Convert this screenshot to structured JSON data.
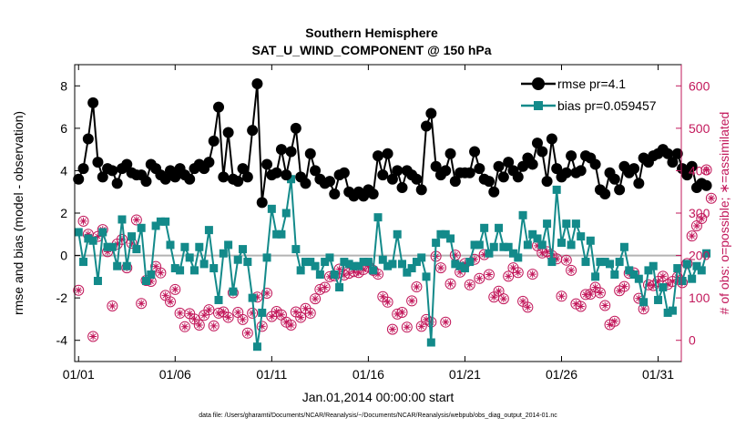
{
  "chart_data": {
    "type": "line",
    "title": "Southern Hemisphere",
    "subtitle": "SAT_U_WIND_COMPONENT @ 150 hPa",
    "xlabel": "Jan.01,2014 00:00:00 start",
    "ylabel_left": "rmse and bias (model - observation)",
    "ylabel_right": "# of obs: o=possible; ∗=assimilated",
    "footer": "data file: /Users/gharamti/Documents/NCAR/Reanalysis/~/Documents/NCAR/Reanalysis/webpub/obs_diag_output_2014-01.nc",
    "xlim": [
      0.8,
      32.2
    ],
    "ylim_left": [
      -5,
      9
    ],
    "ylim_right": [
      -50,
      650
    ],
    "x_ticks": [
      1,
      6,
      11,
      16,
      21,
      26,
      31
    ],
    "x_tick_labels": [
      "01/01",
      "01/06",
      "01/11",
      "01/16",
      "01/21",
      "01/26",
      "01/31"
    ],
    "y_left_ticks": [
      -4,
      -2,
      0,
      2,
      4,
      6,
      8
    ],
    "y_right_ticks": [
      0,
      100,
      200,
      300,
      400,
      500,
      600
    ],
    "legend_position": "top-right",
    "grid": false,
    "colors": {
      "rmse": "#000000",
      "bias": "#138a8a",
      "obs": "#c2185b",
      "zero": "#b3b3b3"
    },
    "series": [
      {
        "name": "rmse pr=4.1",
        "axis": "left",
        "x_start": 1.0,
        "x_step": 0.25,
        "values": [
          3.6,
          4.1,
          5.5,
          7.2,
          4.4,
          3.7,
          4.1,
          4.0,
          3.4,
          4.1,
          4.3,
          3.9,
          3.8,
          3.8,
          3.5,
          4.3,
          4.1,
          3.8,
          3.6,
          4.0,
          3.7,
          4.1,
          3.8,
          3.6,
          4.1,
          4.3,
          4.1,
          4.4,
          5.4,
          7.0,
          3.7,
          5.8,
          3.6,
          3.5,
          4.1,
          3.7,
          5.9,
          8.1,
          2.5,
          4.3,
          3.8,
          3.9,
          5.0,
          3.8,
          4.9,
          6.0,
          3.7,
          3.4,
          4.8,
          4.0,
          3.6,
          3.4,
          3.5,
          2.9,
          3.8,
          3.9,
          3.0,
          2.8,
          3.0,
          2.8,
          3.1,
          2.9,
          4.7,
          3.8,
          4.8,
          3.6,
          4.0,
          3.2,
          4.0,
          3.8,
          3.6,
          3.1,
          6.1,
          6.7,
          4.2,
          3.8,
          4.0,
          4.8,
          3.5,
          3.9,
          3.9,
          3.9,
          4.9,
          4.1,
          3.6,
          3.5,
          3.0,
          4.2,
          3.7,
          4.4,
          4.0,
          3.7,
          4.2,
          4.6,
          4.3,
          5.3,
          4.9,
          3.5,
          5.5,
          4.1,
          3.7,
          3.9,
          4.7,
          3.9,
          4.0,
          4.7,
          4.6,
          4.3,
          3.1,
          2.9,
          3.9,
          3.6,
          3.1,
          4.2,
          3.9,
          4.1,
          3.4,
          4.6,
          4.4,
          4.7,
          4.8,
          5.0,
          4.8,
          4.4,
          4.8,
          4.1,
          3.8,
          4.2,
          3.2,
          3.4,
          3.3
        ]
      },
      {
        "name": "bias pr=0.059457",
        "axis": "left",
        "x_start": 1.0,
        "x_step": 0.25,
        "values": [
          1.1,
          -0.3,
          0.8,
          0.7,
          -1.2,
          1.1,
          0.4,
          0.4,
          -0.5,
          1.7,
          -0.5,
          0.9,
          0.3,
          1.3,
          -1.2,
          -0.9,
          1.4,
          1.6,
          1.6,
          0.5,
          -0.6,
          -0.7,
          0.4,
          -0.1,
          -0.7,
          0.4,
          -0.4,
          1.2,
          -0.6,
          -2.1,
          0.1,
          0.5,
          -1.7,
          -0.2,
          0.3,
          -0.3,
          -2.0,
          -4.3,
          -2.7,
          -0.1,
          2.2,
          1.0,
          1.0,
          2.0,
          3.6,
          0.3,
          -0.7,
          -0.3,
          -0.3,
          -0.5,
          -0.9,
          -0.3,
          -0.1,
          -0.9,
          -1.5,
          -0.3,
          -0.4,
          -0.5,
          -0.5,
          -0.3,
          -0.3,
          -0.7,
          1.8,
          -0.2,
          -0.5,
          -0.4,
          1.0,
          -0.4,
          -0.8,
          -0.6,
          -0.3,
          -0.1,
          -1.0,
          -4.1,
          0.6,
          1.0,
          1.0,
          0.8,
          -0.4,
          -0.5,
          -0.6,
          -0.3,
          0.5,
          0.5,
          1.3,
          0.1,
          0.4,
          1.3,
          0.4,
          0.4,
          0.1,
          -0.1,
          1.9,
          0.5,
          1.0,
          0.8,
          0.5,
          1.5,
          -0.3,
          3.1,
          0.6,
          1.5,
          0.5,
          1.5,
          0.9,
          -0.3,
          0.7,
          -1.0,
          -0.3,
          -0.3,
          -0.4,
          -0.9,
          -0.3,
          0.4,
          -0.7,
          -0.9,
          -1.1,
          -2.2,
          -0.7,
          -0.5,
          -2.1,
          -1.5,
          -2.7,
          -2.6,
          -0.6,
          -1.2,
          -0.4,
          -1.1,
          -0.5,
          -0.7,
          0.1
        ]
      },
      {
        "name": "possible",
        "axis": "right",
        "x_start": 1.0,
        "x_step": 0.25,
        "values": [
          118,
          281,
          250,
          9,
          245,
          261,
          209,
          81,
          227,
          238,
          171,
          229,
          284,
          87,
          141,
          139,
          174,
          159,
          106,
          91,
          120,
          64,
          32,
          63,
          50,
          36,
          59,
          72,
          34,
          64,
          67,
          54,
          112,
          66,
          49,
          17,
          64,
          102,
          33,
          111,
          56,
          68,
          60,
          43,
          36,
          67,
          54,
          75,
          64,
          98,
          120,
          125,
          150,
          152,
          168,
          154,
          158,
          162,
          160,
          167,
          174,
          165,
          156,
          103,
          90,
          26,
          62,
          66,
          31,
          93,
          126,
          33,
          49,
          43,
          198,
          171,
          43,
          133,
          201,
          161,
          181,
          131,
          191,
          146,
          202,
          155,
          102,
          116,
          98,
          151,
          171,
          160,
          92,
          78,
          156,
          223,
          206,
          209,
          200,
          192,
          104,
          189,
          165,
          86,
          80,
          108,
          109,
          125,
          112,
          82,
          37,
          45,
          117,
          127,
          158,
          159,
          99,
          74,
          131,
          129,
          139,
          151,
          132,
          139,
          149,
          136,
          181,
          246,
          270,
          287,
          402,
          335
        ]
      },
      {
        "name": "assimilated",
        "axis": "right",
        "x_start": 1.0,
        "x_step": 0.25,
        "values": [
          118,
          281,
          250,
          9,
          245,
          261,
          209,
          81,
          227,
          238,
          171,
          229,
          284,
          87,
          141,
          139,
          174,
          159,
          106,
          91,
          120,
          64,
          32,
          63,
          50,
          36,
          59,
          72,
          34,
          64,
          67,
          54,
          112,
          66,
          49,
          17,
          64,
          102,
          33,
          111,
          56,
          68,
          60,
          43,
          36,
          67,
          54,
          75,
          64,
          98,
          120,
          125,
          150,
          152,
          168,
          154,
          158,
          162,
          160,
          167,
          174,
          165,
          156,
          103,
          90,
          26,
          62,
          66,
          31,
          93,
          126,
          33,
          49,
          43,
          198,
          171,
          43,
          133,
          201,
          161,
          181,
          131,
          191,
          146,
          202,
          155,
          102,
          116,
          98,
          151,
          171,
          160,
          92,
          78,
          156,
          223,
          206,
          209,
          200,
          192,
          104,
          189,
          165,
          86,
          80,
          108,
          109,
          125,
          112,
          82,
          37,
          45,
          117,
          127,
          158,
          159,
          99,
          74,
          131,
          129,
          139,
          151,
          132,
          139,
          149,
          136,
          181,
          246,
          270,
          287,
          402,
          335
        ]
      }
    ]
  }
}
